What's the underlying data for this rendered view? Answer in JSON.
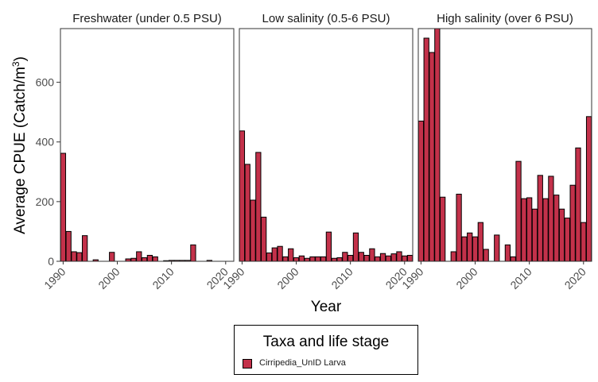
{
  "chart_data": {
    "type": "bar",
    "ylabel": "Average CPUE (Catch/m",
    "ylabel_superscript": "3",
    "ylabel_close": ")",
    "xlabel": "Year",
    "ylim": [
      0,
      780
    ],
    "yticks": [
      0,
      200,
      400,
      600
    ],
    "xlim": [
      1989.5,
      2021.5
    ],
    "xticks": [
      1990,
      2000,
      2010,
      2020
    ],
    "bar_color": "#C3314A",
    "bar_edge_color": "#000000",
    "legend": {
      "title": "Taxa and life stage",
      "entries": [
        "Cirripedia_UnID Larva"
      ],
      "position": "bottom"
    },
    "panels": [
      {
        "title": "Freshwater (under 0.5 PSU)",
        "x": [
          1990,
          1991,
          1992,
          1993,
          1994,
          1995,
          1996,
          1997,
          1998,
          1999,
          2000,
          2001,
          2002,
          2003,
          2004,
          2005,
          2006,
          2007,
          2008,
          2009,
          2010,
          2011,
          2012,
          2013,
          2014,
          2015,
          2016,
          2017,
          2018,
          2019,
          2020,
          2021
        ],
        "values": [
          362,
          100,
          32,
          29,
          86,
          0,
          5,
          0,
          0,
          30,
          0,
          0,
          8,
          10,
          32,
          12,
          20,
          15,
          0,
          2,
          3,
          3,
          3,
          3,
          55,
          0,
          0,
          3,
          0,
          0,
          0,
          0
        ]
      },
      {
        "title": "Low salinity (0.5-6 PSU)",
        "x": [
          1990,
          1991,
          1992,
          1993,
          1994,
          1995,
          1996,
          1997,
          1998,
          1999,
          2000,
          2001,
          2002,
          2003,
          2004,
          2005,
          2006,
          2007,
          2008,
          2009,
          2010,
          2011,
          2012,
          2013,
          2014,
          2015,
          2016,
          2017,
          2018,
          2019,
          2020,
          2021
        ],
        "values": [
          437,
          325,
          205,
          365,
          148,
          28,
          45,
          50,
          15,
          42,
          12,
          18,
          10,
          15,
          15,
          15,
          98,
          10,
          12,
          30,
          20,
          95,
          30,
          20,
          42,
          15,
          26,
          18,
          25,
          32,
          18,
          20
        ]
      },
      {
        "title": "High salinity (over 6 PSU)",
        "x": [
          1990,
          1991,
          1992,
          1993,
          1994,
          1995,
          1996,
          1997,
          1998,
          1999,
          2000,
          2001,
          2002,
          2003,
          2004,
          2005,
          2006,
          2007,
          2008,
          2009,
          2010,
          2011,
          2012,
          2013,
          2014,
          2015,
          2016,
          2017,
          2018,
          2019,
          2020,
          2021
        ],
        "values": [
          470,
          748,
          700,
          780,
          215,
          0,
          32,
          225,
          82,
          95,
          82,
          130,
          40,
          0,
          88,
          0,
          55,
          15,
          335,
          210,
          213,
          175,
          288,
          210,
          285,
          222,
          175,
          145,
          255,
          380,
          130,
          485
        ]
      }
    ]
  }
}
